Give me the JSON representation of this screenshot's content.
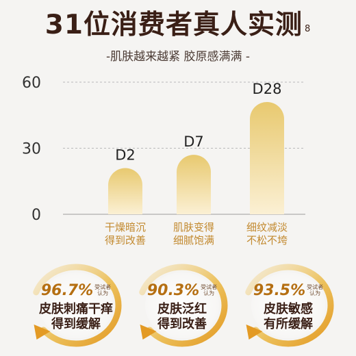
{
  "title": "31位消费者真人实测",
  "title_footnote": "8",
  "subtitle": "-肌肤越来越紧 胶原感满满 -",
  "colors": {
    "bar_top": "#e8c96f",
    "bar_bottom": "#fbf0d4",
    "title": "#3a1f16",
    "category": "#c2892e",
    "percent": "#b56f12"
  },
  "chart_data": {
    "type": "bar",
    "categories": [
      "D2",
      "D7",
      "D28"
    ],
    "category_labels": [
      [
        "干燥暗沉",
        "得到改善"
      ],
      [
        "肌肤变得",
        "细腻饱满"
      ],
      [
        "细纹减淡",
        "不松不垮"
      ]
    ],
    "values": [
      21,
      27,
      51
    ],
    "yticks": [
      0,
      30,
      60
    ],
    "ylim": [
      0,
      60
    ],
    "grid": "dashed lines at 30 and 60"
  },
  "results": [
    {
      "percent": "96.7%",
      "unit_line1": "受试者",
      "unit_line2": "认为",
      "line1": "皮肤刺痛干痒",
      "line2": "得到缓解",
      "icon": "circular-arrow-icon"
    },
    {
      "percent": "90.3%",
      "unit_line1": "受试者",
      "unit_line2": "认为",
      "line1": "皮肤泛红",
      "line2": "得到改善",
      "icon": "circular-arrow-icon"
    },
    {
      "percent": "93.5%",
      "unit_line1": "受试者",
      "unit_line2": "认为",
      "line1": "皮肤敏感",
      "line2": "有所缓解",
      "icon": "circular-arrow-icon"
    }
  ]
}
